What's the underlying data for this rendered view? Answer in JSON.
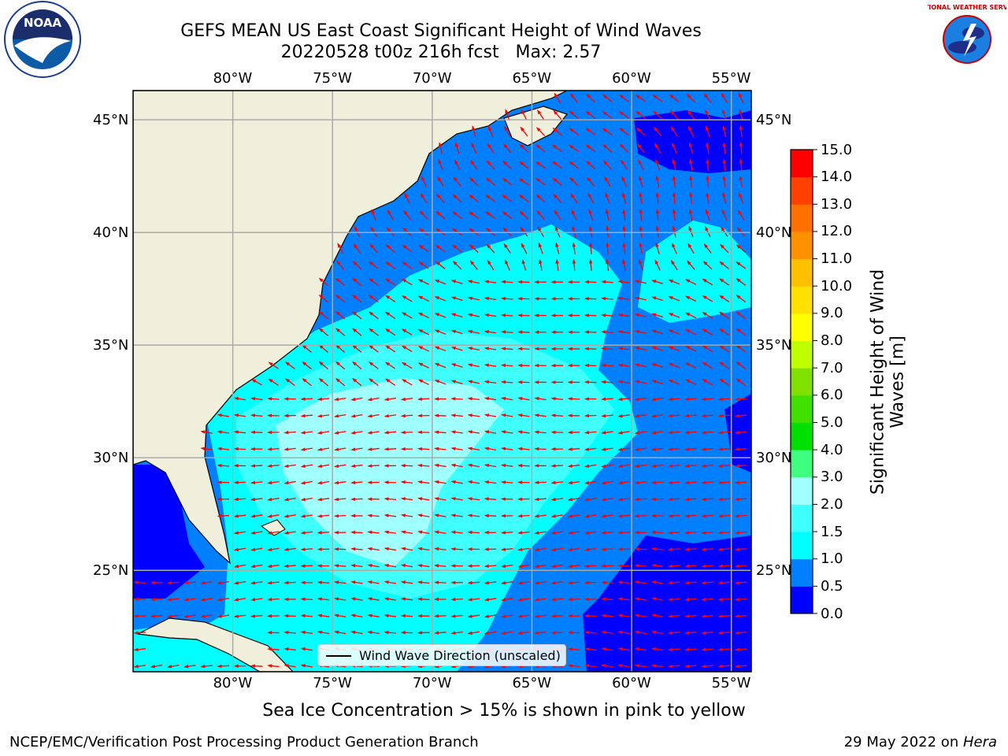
{
  "title": {
    "line1": "GEFS MEAN US East Coast Significant Height of Wind Waves",
    "line2": "20220528 t00z 216h fcst   Max: 2.57"
  },
  "map": {
    "lon_range": [
      -85,
      -54
    ],
    "lat_range": [
      20.5,
      46.3
    ],
    "lon_ticks": [
      "80°W",
      "75°W",
      "70°W",
      "65°W",
      "60°W",
      "55°W"
    ],
    "lat_ticks": [
      "45°N",
      "40°N",
      "35°N",
      "30°N",
      "25°N"
    ],
    "legend_label": "Wind Wave Direction (unscaled)",
    "arrow_color": "#ff0000",
    "land_color": "#efefdc"
  },
  "colorbar": {
    "label": "Significant Height of Wind Waves [m]",
    "tick_labels": [
      "0.0",
      "0.5",
      "1.0",
      "1.5",
      "2.0",
      "3.0",
      "4.0",
      "5.0",
      "6.0",
      "7.0",
      "8.0",
      "9.0",
      "10.0",
      "11.0",
      "12.0",
      "13.0",
      "14.0",
      "15.0"
    ],
    "colors": [
      "#0000ff",
      "#0080ff",
      "#00ffff",
      "#40ffff",
      "#a0ffff",
      "#40ff80",
      "#00e000",
      "#40e000",
      "#80e000",
      "#c0ff00",
      "#ffff00",
      "#ffe000",
      "#ffc000",
      "#ff9000",
      "#ff7000",
      "#ff4000",
      "#ff0000"
    ]
  },
  "logos": {
    "left": "NOAA",
    "right_text": "NATIONAL WEATHER SERVICE"
  },
  "footer": {
    "note": "Sea Ice Concentration > 15% is shown in pink to yellow",
    "left": "NCEP/EMC/Verification Post Processing Product Generation Branch",
    "right_date": "29 May 2022 on ",
    "right_host": "Hera"
  }
}
